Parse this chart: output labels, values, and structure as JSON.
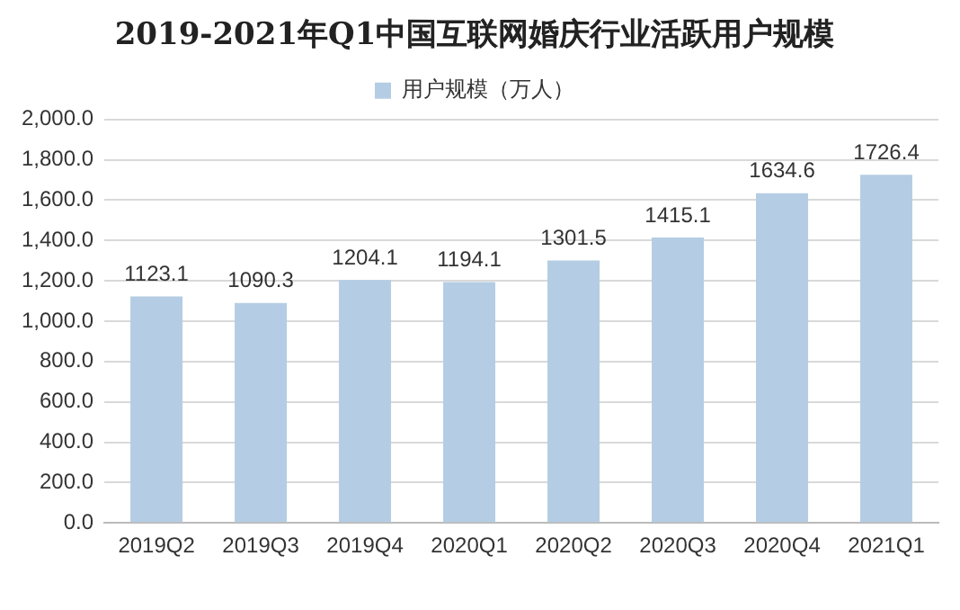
{
  "chart_data": {
    "type": "bar",
    "title": "2019-2021年Q1中国互联网婚庆行业活跃用户规模",
    "categories": [
      "2019Q2",
      "2019Q3",
      "2019Q4",
      "2020Q1",
      "2020Q2",
      "2020Q3",
      "2020Q4",
      "2021Q1"
    ],
    "series": [
      {
        "name": "用户规模（万人）",
        "color": "#b4cde4",
        "values": [
          1123.1,
          1090.3,
          1204.1,
          1194.1,
          1301.5,
          1415.1,
          1634.6,
          1726.4
        ]
      }
    ],
    "ylim": [
      0,
      2000
    ],
    "yticks": [
      {
        "value": 0,
        "label": "0.0"
      },
      {
        "value": 200,
        "label": "200.0"
      },
      {
        "value": 400,
        "label": "400.0"
      },
      {
        "value": 600,
        "label": "600.0"
      },
      {
        "value": 800,
        "label": "800.0"
      },
      {
        "value": 1000,
        "label": "1,000.0"
      },
      {
        "value": 1200,
        "label": "1,200.0"
      },
      {
        "value": 1400,
        "label": "1,400.0"
      },
      {
        "value": 1600,
        "label": "1,600.0"
      },
      {
        "value": 1800,
        "label": "1,800.0"
      },
      {
        "value": 2000,
        "label": "2,000.0"
      }
    ],
    "grid": "y",
    "legend": "top",
    "data_labels": true
  }
}
